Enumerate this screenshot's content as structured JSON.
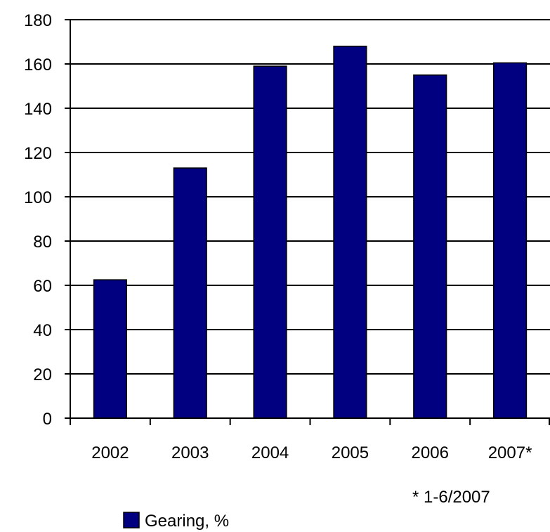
{
  "chart_data": {
    "type": "bar",
    "categories": [
      "2002",
      "2003",
      "2004",
      "2005",
      "2006",
      "2007*"
    ],
    "series": [
      {
        "name": "Gearing, %",
        "values": [
          62.5,
          113,
          159,
          168,
          155,
          160.5
        ]
      }
    ],
    "ylim": [
      0,
      180
    ],
    "yticks": [
      0,
      20,
      40,
      60,
      80,
      100,
      120,
      140,
      160,
      180
    ],
    "grid": true,
    "legend_position": "bottom-left",
    "note": "* 1-6/2007",
    "colors": {
      "bar": "#000080",
      "grid": "#000000",
      "axis": "#000000"
    }
  }
}
